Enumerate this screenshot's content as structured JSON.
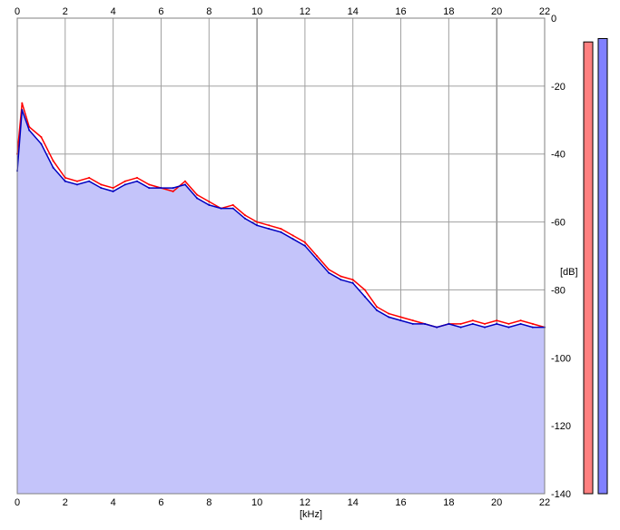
{
  "chart_data": {
    "type": "area",
    "xlabel": "[kHz]",
    "ylabel": "[dB]",
    "xlim": [
      0,
      22
    ],
    "ylim": [
      -140,
      0
    ],
    "x_ticks": [
      0,
      2,
      4,
      6,
      8,
      10,
      12,
      14,
      16,
      18,
      20,
      22
    ],
    "y_ticks": [
      0,
      -20,
      -40,
      -60,
      -80,
      -100,
      -120,
      -140
    ],
    "y_tick_labels": [
      "0",
      "-20",
      "-40",
      "-60",
      "-80",
      "-100",
      "-120",
      "-140"
    ],
    "grid": true,
    "series": [
      {
        "color": "#ff0000",
        "x": [
          0.0,
          0.2,
          0.5,
          1.0,
          1.5,
          2.0,
          2.5,
          3.0,
          3.5,
          4.0,
          4.5,
          5.0,
          5.5,
          6.0,
          6.5,
          7.0,
          7.5,
          8.0,
          8.5,
          9.0,
          9.5,
          10.0,
          10.5,
          11.0,
          11.5,
          12.0,
          12.5,
          13.0,
          13.5,
          14.0,
          14.5,
          15.0,
          15.5,
          16.0,
          16.5,
          17.0,
          17.5,
          18.0,
          18.5,
          19.0,
          19.5,
          20.0,
          20.5,
          21.0,
          21.5,
          22.0
        ],
        "values": [
          -40,
          -25,
          -32,
          -35,
          -42,
          -47,
          -48,
          -47,
          -49,
          -50,
          -48,
          -47,
          -49,
          -50,
          -51,
          -48,
          -52,
          -54,
          -56,
          -55,
          -58,
          -60,
          -61,
          -62,
          -64,
          -66,
          -70,
          -74,
          -76,
          -77,
          -80,
          -85,
          -87,
          -88,
          -89,
          -90,
          -91,
          -90,
          -90,
          -89,
          -90,
          -89,
          -90,
          -89,
          -90,
          -91
        ]
      },
      {
        "color": "#0000c0",
        "x": [
          0.0,
          0.2,
          0.5,
          1.0,
          1.5,
          2.0,
          2.5,
          3.0,
          3.5,
          4.0,
          4.5,
          5.0,
          5.5,
          6.0,
          6.5,
          7.0,
          7.5,
          8.0,
          8.5,
          9.0,
          9.5,
          10.0,
          10.5,
          11.0,
          11.5,
          12.0,
          12.5,
          13.0,
          13.5,
          14.0,
          14.5,
          15.0,
          15.5,
          16.0,
          16.5,
          17.0,
          17.5,
          18.0,
          18.5,
          19.0,
          19.5,
          20.0,
          20.5,
          21.0,
          21.5,
          22.0
        ],
        "values": [
          -45,
          -27,
          -33,
          -37,
          -44,
          -48,
          -49,
          -48,
          -50,
          -51,
          -49,
          -48,
          -50,
          -50,
          -50,
          -49,
          -53,
          -55,
          -56,
          -56,
          -59,
          -61,
          -62,
          -63,
          -65,
          -67,
          -71,
          -75,
          -77,
          -78,
          -82,
          -86,
          -88,
          -89,
          -90,
          -90,
          -91,
          -90,
          -91,
          -90,
          -91,
          -90,
          -91,
          -90,
          -91,
          -91
        ]
      }
    ],
    "fill_color": "#c4c4fa"
  },
  "meters": {
    "left": {
      "level_db": -7,
      "color": "#ff8080"
    },
    "right": {
      "level_db": -6,
      "color": "#8080ff"
    }
  }
}
